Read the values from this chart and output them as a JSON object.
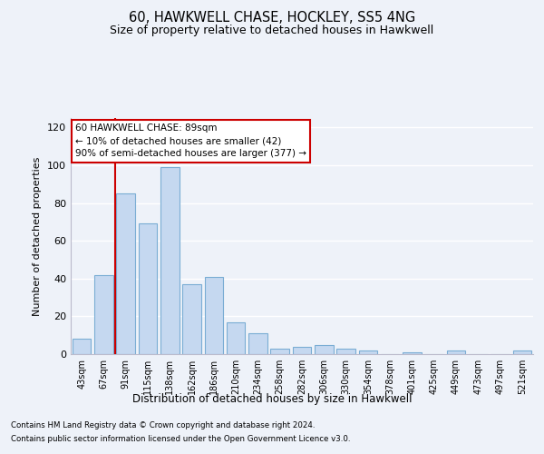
{
  "title1": "60, HAWKWELL CHASE, HOCKLEY, SS5 4NG",
  "title2": "Size of property relative to detached houses in Hawkwell",
  "xlabel": "Distribution of detached houses by size in Hawkwell",
  "ylabel": "Number of detached properties",
  "categories": [
    "43sqm",
    "67sqm",
    "91sqm",
    "115sqm",
    "138sqm",
    "162sqm",
    "186sqm",
    "210sqm",
    "234sqm",
    "258sqm",
    "282sqm",
    "306sqm",
    "330sqm",
    "354sqm",
    "378sqm",
    "401sqm",
    "425sqm",
    "449sqm",
    "473sqm",
    "497sqm",
    "521sqm"
  ],
  "values": [
    8,
    42,
    85,
    69,
    99,
    37,
    41,
    17,
    11,
    3,
    4,
    5,
    3,
    2,
    0,
    1,
    0,
    2,
    0,
    0,
    2
  ],
  "bar_color": "#c5d8f0",
  "bar_edge_color": "#7aadd4",
  "vline_x": 1.5,
  "vline_color": "#cc0000",
  "annotation_text": "60 HAWKWELL CHASE: 89sqm\n← 10% of detached houses are smaller (42)\n90% of semi-detached houses are larger (377) →",
  "annotation_box_edge": "#cc0000",
  "ylim": [
    0,
    125
  ],
  "yticks": [
    0,
    20,
    40,
    60,
    80,
    100,
    120
  ],
  "footnote1": "Contains HM Land Registry data © Crown copyright and database right 2024.",
  "footnote2": "Contains public sector information licensed under the Open Government Licence v3.0.",
  "bg_color": "#eef2f9",
  "plot_bg_color": "#eef2f9",
  "grid_color": "#ffffff"
}
